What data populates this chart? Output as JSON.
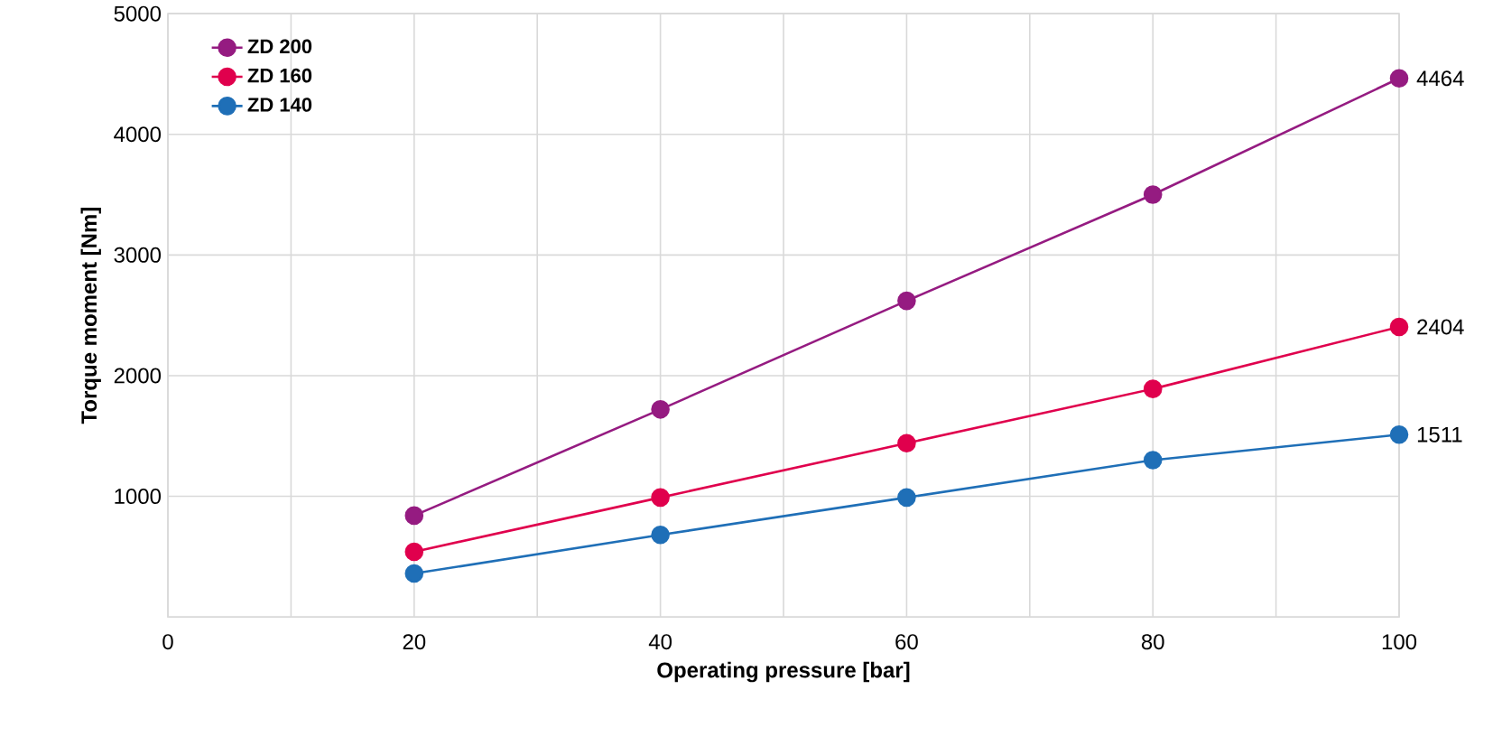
{
  "chart_data": {
    "type": "line",
    "xlabel": "Operating pressure [bar]",
    "ylabel": "Torque moment [Nm]",
    "x": [
      20,
      40,
      60,
      80,
      100
    ],
    "series": [
      {
        "name": "ZD 200",
        "color": "#951b81",
        "values": [
          840,
          1720,
          2620,
          3500,
          4464
        ],
        "value_labels": [
          null,
          null,
          null,
          null,
          "4464"
        ]
      },
      {
        "name": "ZD 160",
        "color": "#e0004d",
        "values": [
          540,
          990,
          1440,
          1890,
          2404
        ],
        "value_labels": [
          null,
          null,
          null,
          null,
          "2404"
        ]
      },
      {
        "name": "ZD 140",
        "color": "#1f6fb7",
        "values": [
          360,
          680,
          990,
          1300,
          1511
        ],
        "value_labels": [
          null,
          null,
          null,
          null,
          "1511"
        ]
      }
    ],
    "xlim": [
      0,
      100
    ],
    "ylim": [
      0,
      5000
    ],
    "xticks": [
      0,
      {
        "value": 10,
        "label": null
      },
      20,
      {
        "value": 30,
        "label": null
      },
      40,
      {
        "value": 50,
        "label": null
      },
      60,
      {
        "value": 70,
        "label": null
      },
      80,
      {
        "value": 90,
        "label": null
      },
      100
    ],
    "yticks": [
      1000,
      2000,
      3000,
      4000,
      5000
    ],
    "grid": true,
    "legend": "top left",
    "marker": "circle",
    "line_style": "solid"
  }
}
